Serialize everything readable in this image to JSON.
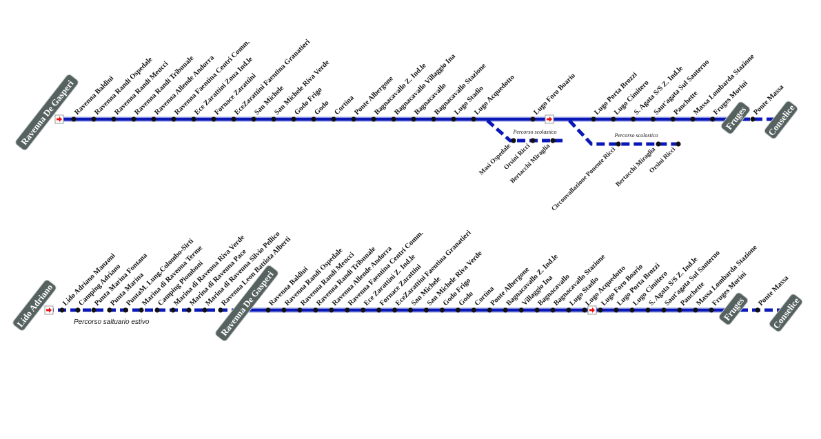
{
  "colors": {
    "line": "#0b18b8",
    "line_edge": "#8f97e0",
    "badge": "#566260",
    "stop": "#111111",
    "arrow": "#ee1111"
  },
  "route_top": {
    "origin": "Ravenna De Gasperi",
    "stops_a": [
      "Ravenna Baldini",
      "Ravenna Randi Ospedale",
      "Ravenna Randi Meucci",
      "Ravenna Randi Tribunale",
      "Ravenna Allende Andorra",
      "Ravenna Faentina Centri Comm.",
      "Ece Zarattini Zona Ind.le",
      "Fornace Zarattini",
      "EceZarattini Faentina Granatieri",
      "San Michele",
      "San Michele Riva Verde",
      "Godo Frigo",
      "Godo",
      "Cortina",
      "Ponte Albergone",
      "Bagnacavallo Z. Ind.le",
      "Bagnacavallo Villaggio Ina",
      "Bagnacavallo",
      "Bagnacavallo Stazione",
      "Lugo Stadio",
      "Lugo Acquedotto",
      "Lugo Foro Boario"
    ],
    "stops_b": [
      "Lugo Porta Brozzi",
      "Lugo Cimitero",
      "S. Agata S/S Z. Ind.le",
      "Sant'agata Sul Santerno",
      "Panchette",
      "Massa Lombarda Stazione",
      "Fruges Morini"
    ],
    "intermediate_terminal": "Fruges",
    "stops_c": [
      "Ponte Massa"
    ],
    "destination": "Conselice",
    "branch_1": {
      "note": "Percorso scolastico",
      "stops": [
        "Masi Ospedale",
        "Orsini Ricci",
        "Bertacchi Miraglia"
      ]
    },
    "branch_2": {
      "note": "Percorso scolastico",
      "stops": [
        "Circonvallazione Ponente Ricci",
        "Bertacchi Miraglia",
        "Orsini Ricci"
      ]
    }
  },
  "route_bottom": {
    "origin": "Lido Adriano",
    "seasonal_note": "Percorso saltuario estivo",
    "stops_seasonal": [
      "Lido Adriano Manzoni",
      "Camping Adriano",
      "Punta Marina Fontana",
      "Punta Marina",
      "PuntaM. Lung.Colombo-Sirti",
      "Marina di Ravenna Terme",
      "Camping Piomboni",
      "Marina di Ravenna Riva Verde",
      "Marina di Ravenna Pace",
      "Marina di Ravenna Silvio Pellico",
      "Ravenna Leon Battista Alberti"
    ],
    "via_terminal": "Ravenna De Gasperi",
    "stops_a": [
      "Ravenna Baldini",
      "Ravenna Randi Ospedale",
      "Ravenna Randi Meucci",
      "Ravenna Randi Tribunale",
      "Ravenna Allende Andorra",
      "Ravenna Faentina Centri Comm.",
      "Ece Zarattini Z. Ind.le",
      "Fornace Zarattini",
      "EceZarattini Faentina Granatieri",
      "San Michele",
      "San Michele Riva Verde",
      "Godo Frigo",
      "Godo",
      "Cortina",
      "Ponte Albergone",
      "Bagnacavallo Z. Ind.le",
      "Villaggio Ina",
      "Bagnacavallo",
      "Bagnacavallo Stazione",
      "Lugo Stadio",
      "Lugo Acquedotto"
    ],
    "stops_b": [
      "Lugo Foro Boario",
      "Lugo Porta Brozzi",
      "Lugo Cimitero",
      "S. Agata S/S Z. Ind.le",
      "Sant'agata Sul Santerno",
      "Panchette",
      "Massa Lombarda Stazione",
      "Fruges Morini"
    ],
    "intermediate_terminal": "Fruges",
    "stops_c": [
      "Ponte Massa"
    ],
    "destination": "Conselice"
  }
}
